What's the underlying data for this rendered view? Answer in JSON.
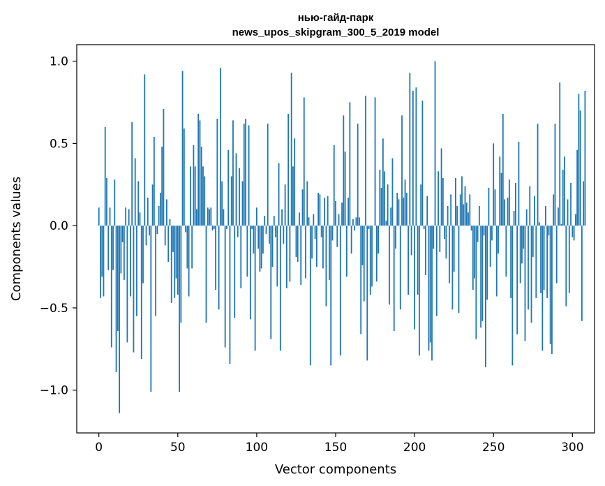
{
  "chart_data": {
    "type": "bar",
    "title": "нью-гайд-парк",
    "subtitle": "news_upos_skipgram_300_5_2019 model",
    "xlabel": "Vector components",
    "ylabel": "Components values",
    "xlim": [
      -14,
      314
    ],
    "ylim": [
      -1.26,
      1.1
    ],
    "xticks": [
      0,
      50,
      100,
      150,
      200,
      250,
      300
    ],
    "xtick_labels": [
      "0",
      "50",
      "100",
      "150",
      "200",
      "250",
      "300"
    ],
    "yticks": [
      1.0,
      0.5,
      0.0,
      -0.5,
      -1.0
    ],
    "ytick_labels": [
      "1.0",
      "0.5",
      "0.0",
      "−0.5",
      "−1.0"
    ],
    "grid": false,
    "color": "#1f77b4",
    "values": [
      0.11,
      -0.44,
      -0.31,
      -0.43,
      0.6,
      0.29,
      -0.27,
      0.11,
      -0.74,
      -0.27,
      0.28,
      -0.89,
      -0.64,
      -1.14,
      -0.29,
      -0.1,
      -0.33,
      0.11,
      -0.71,
      0.1,
      -0.43,
      0.63,
      -0.77,
      0.41,
      -0.55,
      0.27,
      0.08,
      -0.81,
      -0.35,
      0.92,
      -0.12,
      0.17,
      -0.06,
      -1.01,
      0.25,
      0.54,
      -0.55,
      -0.05,
      0.12,
      0.2,
      0.48,
      0.71,
      -0.12,
      0.16,
      -0.22,
      0.04,
      -0.47,
      -0.16,
      -0.44,
      -0.32,
      -0.42,
      -1.01,
      -0.59,
      0.94,
      0.59,
      -0.04,
      -0.26,
      -0.43,
      0.36,
      -0.26,
      0.49,
      0.36,
      0.1,
      0.68,
      0.64,
      0.48,
      0.36,
      0.3,
      -0.59,
      0.11,
      0.1,
      0.11,
      -0.03,
      -0.02,
      -0.39,
      0.65,
      -0.51,
      0.96,
      0.27,
      0.1,
      -0.74,
      -0.02,
      0.46,
      -0.84,
      0.3,
      0.64,
      -0.56,
      0.44,
      -0.07,
      0.35,
      -0.38,
      0.27,
      0.62,
      0.65,
      -0.31,
      0.61,
      -0.57,
      -0.02,
      -0.17,
      -0.76,
      0.11,
      -0.14,
      -0.28,
      -0.26,
      -0.17,
      0.06,
      -0.05,
      0.62,
      -0.11,
      -0.69,
      -0.25,
      0.06,
      -0.07,
      -0.37,
      0.38,
      -0.76,
      0.1,
      -0.11,
      0.25,
      -0.38,
      0.68,
      -0.34,
      0.93,
      0.36,
      0.53,
      -0.19,
      -0.22,
      0.08,
      -0.36,
      0.22,
      0.78,
      -0.32,
      0.27,
      0.05,
      -0.85,
      -0.2,
      0.07,
      -0.08,
      -0.25,
      0.2,
      0.19,
      -0.07,
      -0.26,
      0.17,
      -0.49,
      0.18,
      -0.33,
      -0.85,
      -0.09,
      0.49,
      0.15,
      -0.13,
      0.07,
      -0.79,
      0.14,
      0.67,
      0.45,
      -0.31,
      0.17,
      0.75,
      -0.17,
      0.04,
      -0.03,
      0.05,
      0.62,
      0.05,
      -0.66,
      -0.24,
      -0.46,
      0.79,
      -0.82,
      -0.02,
      -0.42,
      -0.37,
      0.0,
      0.78,
      -0.34,
      -0.17,
      0.34,
      0.23,
      0.53,
      0.33,
      0.03,
      0.25,
      -0.48,
      0.11,
      0.41,
      -0.64,
      -0.14,
      0.2,
      0.16,
      -0.51,
      0.67,
      0.17,
      0.28,
      0.2,
      -0.42,
      0.93,
      -0.18,
      0.82,
      -0.63,
      0.84,
      -0.42,
      -0.79,
      0.25,
      0.76,
      -0.02,
      -0.3,
      0.18,
      -0.76,
      -0.71,
      -0.82,
      -0.14,
      1.0,
      -0.55,
      0.33,
      -0.16,
      0.47,
      0.29,
      -0.08,
      -0.2,
      0.12,
      -0.35,
      0.19,
      -0.51,
      -0.28,
      0.29,
      0.12,
      -0.53,
      0.19,
      0.3,
      0.13,
      0.24,
      0.14,
      0.08,
      0.19,
      -0.03,
      -0.39,
      -0.32,
      -0.69,
      -0.1,
      0.12,
      -0.62,
      -0.58,
      -0.06,
      -0.86,
      -0.45,
      0.23,
      -0.25,
      -0.09,
      0.5,
      0.22,
      -0.43,
      -0.17,
      0.42,
      0.32,
      0.68,
      0.16,
      -0.31,
      0.17,
      0.28,
      -0.44,
      -0.85,
      0.09,
      0.26,
      -0.66,
      0.51,
      -0.35,
      -0.23,
      -0.14,
      -0.7,
      0.1,
      -0.51,
      0.24,
      -0.59,
      -0.19,
      0.18,
      -0.44,
      0.62,
      0.02,
      -0.41,
      -0.76,
      -0.39,
      0.12,
      -0.44,
      -0.06,
      -0.72,
      -0.78,
      0.19,
      0.62,
      -0.35,
      0.11,
      0.87,
      0.01,
      0.34,
      0.42,
      -0.49,
      0.16,
      -0.41,
      0.26,
      -0.07,
      -0.09,
      0.07,
      0.46,
      0.8,
      0.7,
      -0.58,
      0.27,
      0.82
    ]
  }
}
